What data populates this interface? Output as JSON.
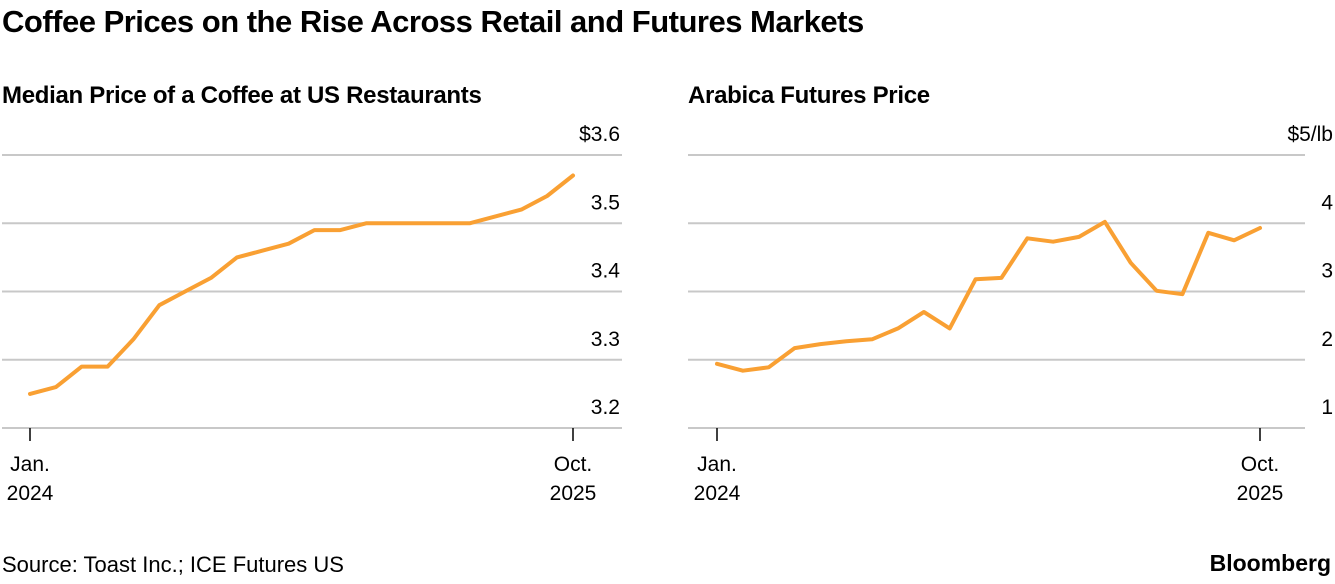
{
  "title": "Coffee Prices on the Rise Across Retail and Futures Markets",
  "source": "Source: Toast Inc.; ICE Futures US",
  "brand": "Bloomberg",
  "line_color": "#f9a033",
  "chart_data": [
    {
      "type": "line",
      "title": "Median Price of a Coffee at US Restaurants",
      "ylabel": "$",
      "ylim": [
        3.2,
        3.6
      ],
      "yticks": [
        "3.2",
        "3.3",
        "3.4",
        "3.5",
        "$3.6"
      ],
      "ytick_values": [
        3.2,
        3.3,
        3.4,
        3.5,
        3.6
      ],
      "xtick_labels": [
        [
          "Jan.",
          "2024"
        ],
        [
          "Oct.",
          "2025"
        ]
      ],
      "xtick_index": [
        0,
        21
      ],
      "x": [
        "2024-01",
        "2024-02",
        "2024-03",
        "2024-04",
        "2024-05",
        "2024-06",
        "2024-07",
        "2024-08",
        "2024-09",
        "2024-10",
        "2024-11",
        "2024-12",
        "2025-01",
        "2025-02",
        "2025-03",
        "2025-04",
        "2025-05",
        "2025-06",
        "2025-07",
        "2025-08",
        "2025-09",
        "2025-10"
      ],
      "values": [
        3.25,
        3.26,
        3.29,
        3.29,
        3.33,
        3.38,
        3.4,
        3.42,
        3.45,
        3.46,
        3.47,
        3.49,
        3.49,
        3.5,
        3.5,
        3.5,
        3.5,
        3.5,
        3.51,
        3.52,
        3.54,
        3.57
      ],
      "grid": true
    },
    {
      "type": "line",
      "title": "Arabica Futures Price",
      "ylabel": "$/lb",
      "ylim": [
        1,
        5
      ],
      "yticks": [
        "1",
        "2",
        "3",
        "4",
        "$5/lb"
      ],
      "ytick_values": [
        1,
        2,
        3,
        4,
        5
      ],
      "xtick_labels": [
        [
          "Jan.",
          "2024"
        ],
        [
          "Oct.",
          "2025"
        ]
      ],
      "xtick_index": [
        0,
        21
      ],
      "x": [
        "2024-01",
        "2024-02",
        "2024-03",
        "2024-04",
        "2024-05",
        "2024-06",
        "2024-07",
        "2024-08",
        "2024-09",
        "2024-10",
        "2024-11",
        "2024-12",
        "2025-01",
        "2025-02",
        "2025-03",
        "2025-04",
        "2025-05",
        "2025-06",
        "2025-07",
        "2025-08",
        "2025-09",
        "2025-10"
      ],
      "values": [
        1.94,
        1.84,
        1.89,
        2.17,
        2.23,
        2.27,
        2.3,
        2.46,
        2.7,
        2.46,
        3.18,
        3.2,
        3.78,
        3.73,
        3.8,
        4.02,
        3.42,
        3.01,
        2.96,
        3.86,
        3.75,
        3.93
      ],
      "grid": true
    }
  ]
}
